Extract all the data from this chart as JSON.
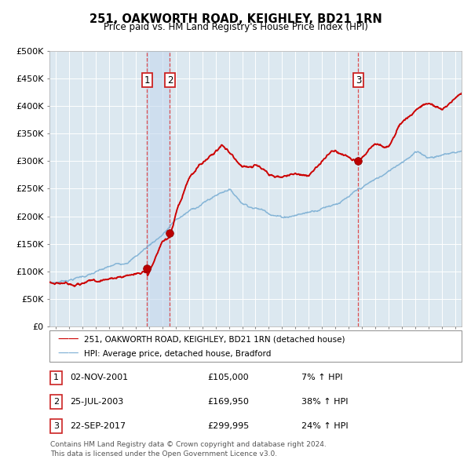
{
  "title": "251, OAKWORTH ROAD, KEIGHLEY, BD21 1RN",
  "subtitle": "Price paid vs. HM Land Registry's House Price Index (HPI)",
  "ylim": [
    0,
    500000
  ],
  "yticks": [
    0,
    50000,
    100000,
    150000,
    200000,
    250000,
    300000,
    350000,
    400000,
    450000,
    500000
  ],
  "ytick_labels": [
    "£0",
    "£50K",
    "£100K",
    "£150K",
    "£200K",
    "£250K",
    "£300K",
    "£350K",
    "£400K",
    "£450K",
    "£500K"
  ],
  "sale_color": "#cc0000",
  "hpi_color": "#7bafd4",
  "bg_color": "#ffffff",
  "transactions": [
    {
      "label": "1",
      "date_num": 2001.84,
      "price": 105000,
      "pct": "7%",
      "direction": "↑",
      "date_str": "02-NOV-2001"
    },
    {
      "label": "2",
      "date_num": 2003.56,
      "price": 169950,
      "pct": "38%",
      "direction": "↑",
      "date_str": "25-JUL-2003"
    },
    {
      "label": "3",
      "date_num": 2017.73,
      "price": 299995,
      "pct": "24%",
      "direction": "↑",
      "date_str": "22-SEP-2017"
    }
  ],
  "legend_sale": "251, OAKWORTH ROAD, KEIGHLEY, BD21 1RN (detached house)",
  "legend_hpi": "HPI: Average price, detached house, Bradford",
  "footnote1": "Contains HM Land Registry data © Crown copyright and database right 2024.",
  "footnote2": "This data is licensed under the Open Government Licence v3.0.",
  "xlim_start": 1994.5,
  "xlim_end": 2025.5,
  "xtick_start": 1995,
  "xtick_end": 2025
}
